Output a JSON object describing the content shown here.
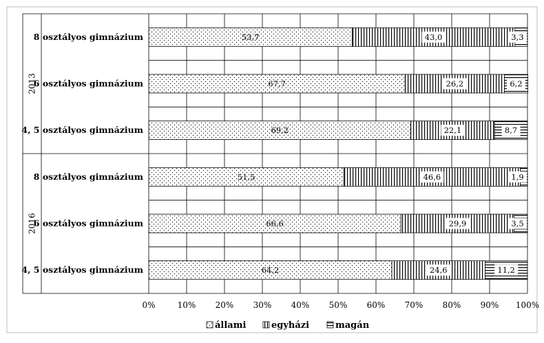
{
  "chart_data": {
    "type": "bar",
    "orientation": "horizontal",
    "stacked": true,
    "percent": true,
    "groups": [
      {
        "label": "2013",
        "categories": [
          "8 osztályos gimnázium",
          "6 osztályos gimnázium",
          "4, 5 osztályos gimnázium"
        ]
      },
      {
        "label": "2016",
        "categories": [
          "8 osztályos gimnázium",
          "6 osztályos gimnázium",
          "4, 5 osztályos gimnázium"
        ]
      }
    ],
    "series": [
      {
        "name": "állami",
        "pattern": "dots",
        "values": [
          53.7,
          67.7,
          69.2,
          51.5,
          66.6,
          64.2
        ],
        "labels": [
          "53,7",
          "67,7",
          "69,2",
          "51,5",
          "66,6",
          "64,2"
        ]
      },
      {
        "name": "egyházi",
        "pattern": "vertical-lines",
        "values": [
          43.0,
          26.2,
          22.1,
          46.6,
          29.9,
          24.6
        ],
        "labels": [
          "43,0",
          "26,2",
          "22,1",
          "46,6",
          "29,9",
          "24,6"
        ]
      },
      {
        "name": "magán",
        "pattern": "horizontal-lines",
        "values": [
          3.3,
          6.2,
          8.7,
          1.9,
          3.5,
          11.2
        ],
        "labels": [
          "3,3",
          "6,2",
          "8,7",
          "1,9",
          "3,5",
          "11,2"
        ]
      }
    ],
    "x_ticks": [
      "0%",
      "10%",
      "20%",
      "30%",
      "40%",
      "50%",
      "60%",
      "70%",
      "80%",
      "90%",
      "100%"
    ],
    "xlim": [
      0,
      100
    ],
    "grid": true,
    "legend_position": "bottom"
  }
}
